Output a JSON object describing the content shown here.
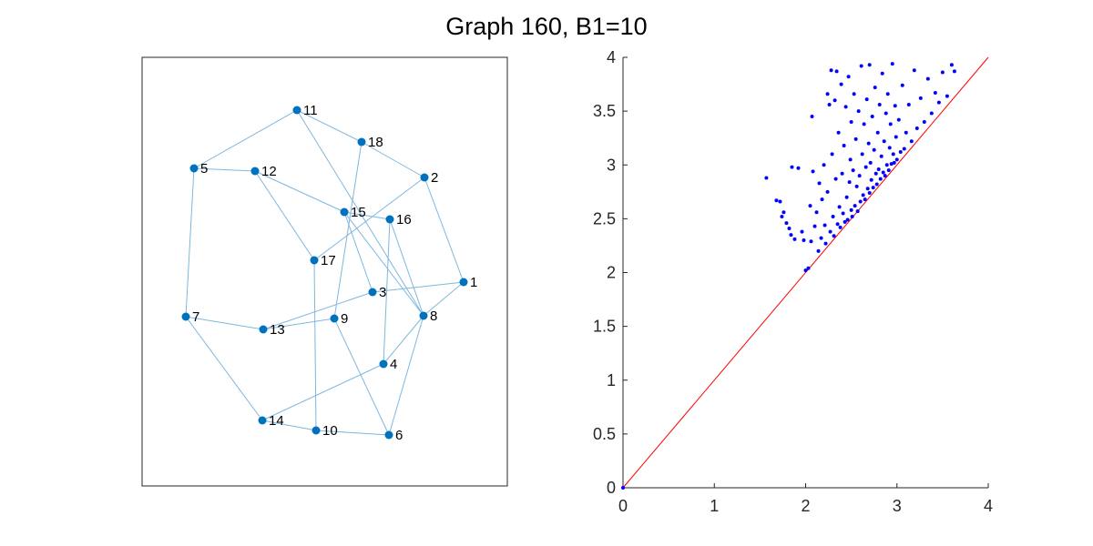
{
  "title": "Graph 160, B1=10",
  "chart_data": [
    {
      "type": "graph",
      "nodes": [
        {
          "id": "1"
        },
        {
          "id": "2"
        },
        {
          "id": "3"
        },
        {
          "id": "4"
        },
        {
          "id": "5"
        },
        {
          "id": "6"
        },
        {
          "id": "7"
        },
        {
          "id": "8"
        },
        {
          "id": "9"
        },
        {
          "id": "10"
        },
        {
          "id": "11"
        },
        {
          "id": "12"
        },
        {
          "id": "13"
        },
        {
          "id": "14"
        },
        {
          "id": "15"
        },
        {
          "id": "16"
        },
        {
          "id": "17"
        },
        {
          "id": "18"
        }
      ],
      "edges": [
        [
          "11",
          "5"
        ],
        [
          "11",
          "18"
        ],
        [
          "11",
          "8"
        ],
        [
          "18",
          "2"
        ],
        [
          "18",
          "9"
        ],
        [
          "5",
          "12"
        ],
        [
          "5",
          "7"
        ],
        [
          "12",
          "15"
        ],
        [
          "12",
          "17"
        ],
        [
          "2",
          "1"
        ],
        [
          "2",
          "17"
        ],
        [
          "15",
          "16"
        ],
        [
          "15",
          "3"
        ],
        [
          "15",
          "8"
        ],
        [
          "16",
          "8"
        ],
        [
          "16",
          "4"
        ],
        [
          "17",
          "10"
        ],
        [
          "1",
          "3"
        ],
        [
          "1",
          "8"
        ],
        [
          "3",
          "13"
        ],
        [
          "7",
          "13"
        ],
        [
          "7",
          "14"
        ],
        [
          "13",
          "9"
        ],
        [
          "9",
          "6"
        ],
        [
          "8",
          "4"
        ],
        [
          "8",
          "6"
        ],
        [
          "4",
          "14"
        ],
        [
          "14",
          "10"
        ],
        [
          "10",
          "6"
        ]
      ]
    },
    {
      "type": "scatter",
      "xlim": [
        0,
        4
      ],
      "ylim": [
        0,
        4
      ],
      "xticks": [
        "0",
        "1",
        "2",
        "3",
        "4"
      ],
      "yticks": [
        "0",
        "0.5",
        "1",
        "1.5",
        "2",
        "2.5",
        "3",
        "3.5",
        "4"
      ],
      "diagonal": {
        "x": [
          0,
          4
        ],
        "y": [
          0,
          4
        ],
        "color": "#ff0000"
      },
      "point_color": "#0000ff",
      "points": [
        [
          0,
          0
        ],
        [
          1.57,
          2.88
        ],
        [
          1.68,
          2.67
        ],
        [
          1.72,
          2.66
        ],
        [
          1.74,
          2.52
        ],
        [
          1.76,
          2.56
        ],
        [
          1.79,
          2.46
        ],
        [
          1.82,
          2.41
        ],
        [
          1.85,
          2.98
        ],
        [
          1.84,
          2.35
        ],
        [
          1.88,
          2.31
        ],
        [
          1.92,
          2.97
        ],
        [
          1.96,
          2.38
        ],
        [
          1.98,
          2.3
        ],
        [
          2.0,
          2.02
        ],
        [
          2.03,
          2.04
        ],
        [
          2.05,
          2.62
        ],
        [
          2.06,
          2.29
        ],
        [
          2.07,
          3.45
        ],
        [
          2.08,
          2.94
        ],
        [
          2.1,
          2.43
        ],
        [
          2.12,
          2.56
        ],
        [
          2.14,
          2.2
        ],
        [
          2.15,
          2.83
        ],
        [
          2.17,
          2.32
        ],
        [
          2.18,
          2.68
        ],
        [
          2.2,
          3.0
        ],
        [
          2.21,
          2.44
        ],
        [
          2.22,
          2.27
        ],
        [
          2.24,
          3.66
        ],
        [
          2.24,
          2.75
        ],
        [
          2.26,
          3.56
        ],
        [
          2.27,
          2.38
        ],
        [
          2.28,
          3.88
        ],
        [
          2.29,
          3.1
        ],
        [
          2.3,
          2.52
        ],
        [
          2.31,
          2.34
        ],
        [
          2.32,
          3.6
        ],
        [
          2.33,
          2.87
        ],
        [
          2.34,
          3.87
        ],
        [
          2.35,
          2.45
        ],
        [
          2.36,
          3.3
        ],
        [
          2.37,
          2.61
        ],
        [
          2.38,
          2.42
        ],
        [
          2.39,
          3.75
        ],
        [
          2.4,
          2.92
        ],
        [
          2.41,
          2.55
        ],
        [
          2.42,
          3.18
        ],
        [
          2.43,
          2.47
        ],
        [
          2.44,
          3.54
        ],
        [
          2.45,
          2.7
        ],
        [
          2.46,
          2.49
        ],
        [
          2.47,
          3.82
        ],
        [
          2.48,
          2.84
        ],
        [
          2.49,
          3.05
        ],
        [
          2.5,
          2.58
        ],
        [
          2.5,
          3.4
        ],
        [
          2.51,
          2.52
        ],
        [
          2.52,
          2.95
        ],
        [
          2.53,
          3.66
        ],
        [
          2.54,
          2.62
        ],
        [
          2.55,
          3.24
        ],
        [
          2.56,
          2.8
        ],
        [
          2.57,
          2.57
        ],
        [
          2.58,
          3.5
        ],
        [
          2.59,
          2.9
        ],
        [
          2.6,
          2.66
        ],
        [
          2.61,
          3.92
        ],
        [
          2.62,
          3.1
        ],
        [
          2.63,
          2.72
        ],
        [
          2.64,
          3.38
        ],
        [
          2.65,
          2.68
        ],
        [
          2.66,
          2.98
        ],
        [
          2.67,
          3.61
        ],
        [
          2.68,
          2.78
        ],
        [
          2.69,
          3.2
        ],
        [
          2.7,
          2.74
        ],
        [
          2.7,
          3.93
        ],
        [
          2.71,
          3.02
        ],
        [
          2.72,
          2.86
        ],
        [
          2.73,
          3.45
        ],
        [
          2.74,
          2.79
        ],
        [
          2.75,
          3.14
        ],
        [
          2.76,
          3.72
        ],
        [
          2.77,
          2.92
        ],
        [
          2.78,
          2.82
        ],
        [
          2.79,
          3.3
        ],
        [
          2.8,
          2.96
        ],
        [
          2.81,
          3.56
        ],
        [
          2.82,
          2.87
        ],
        [
          2.83,
          3.08
        ],
        [
          2.84,
          3.85
        ],
        [
          2.85,
          2.93
        ],
        [
          2.86,
          3.22
        ],
        [
          2.87,
          2.9
        ],
        [
          2.88,
          3.48
        ],
        [
          2.89,
          3.0
        ],
        [
          2.9,
          3.66
        ],
        [
          2.91,
          2.95
        ],
        [
          2.92,
          3.16
        ],
        [
          2.93,
          3.38
        ],
        [
          2.94,
          3.01
        ],
        [
          2.95,
          3.94
        ],
        [
          2.96,
          3.1
        ],
        [
          2.97,
          3.02
        ],
        [
          2.98,
          3.55
        ],
        [
          2.99,
          3.26
        ],
        [
          3.0,
          3.05
        ],
        [
          3.02,
          3.42
        ],
        [
          3.04,
          3.12
        ],
        [
          3.06,
          3.74
        ],
        [
          3.08,
          3.15
        ],
        [
          3.1,
          3.3
        ],
        [
          3.13,
          3.56
        ],
        [
          3.16,
          3.22
        ],
        [
          3.19,
          3.88
        ],
        [
          3.22,
          3.34
        ],
        [
          3.26,
          3.62
        ],
        [
          3.3,
          3.4
        ],
        [
          3.34,
          3.8
        ],
        [
          3.38,
          3.48
        ],
        [
          3.42,
          3.67
        ],
        [
          3.46,
          3.58
        ],
        [
          3.5,
          3.86
        ],
        [
          3.55,
          3.64
        ],
        [
          3.6,
          3.93
        ],
        [
          3.63,
          3.87
        ]
      ]
    }
  ]
}
